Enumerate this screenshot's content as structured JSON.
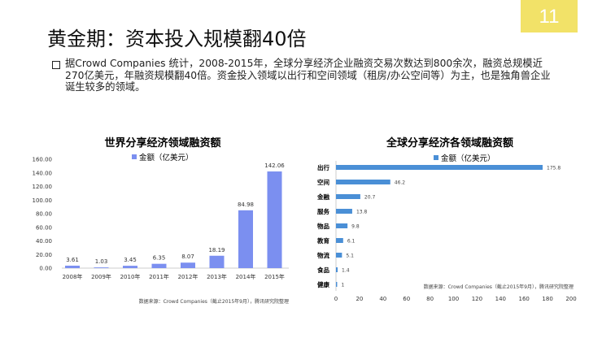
{
  "slide": {
    "title": "黄金期：资本投入规模翻40倍",
    "page_number": "11",
    "paragraph": "据Crowd Companies 统计，2008-2015年，全球分享经济企业融资交易次数达到800余次，融资总规模近270亿美元，年融资规模翻40倍。资金投入领域以出行和空间领域（租房/办公空间等）为主，也是独角兽企业诞生较多的领域。",
    "accent": "#f2e268"
  },
  "chart_data": [
    {
      "type": "bar",
      "title": "世界分享经济领域融资额",
      "legend": "金额（亿美元）",
      "legend_position": "top",
      "categories": [
        "2008年",
        "2009年",
        "2010年",
        "2011年",
        "2012年",
        "2013年",
        "2014年",
        "2015年"
      ],
      "values": [
        3.61,
        1.03,
        3.45,
        6.35,
        8.07,
        18.19,
        84.98,
        142.06
      ],
      "ylim": [
        0,
        160
      ],
      "yticks": [
        "0.00",
        "20.00",
        "40.00",
        "60.00",
        "80.00",
        "100.00",
        "120.00",
        "140.00",
        "160.00"
      ],
      "color": "#7b8ff0",
      "source": "数据来源：Crowd Companies（截止2015年9月），腾讯研究院整理"
    },
    {
      "type": "bar",
      "orientation": "horizontal",
      "title": "全球分享经济各领域融资额",
      "legend": "金额（亿美元）",
      "legend_position": "top",
      "categories": [
        "出行",
        "空间",
        "金融",
        "服务",
        "物品",
        "教育",
        "物流",
        "食品",
        "健康"
      ],
      "values": [
        175.8,
        46.2,
        20.7,
        13.8,
        9.8,
        6.1,
        5.1,
        1.4,
        1
      ],
      "xlim": [
        0,
        200
      ],
      "xticks": [
        "0",
        "20",
        "40",
        "60",
        "80",
        "100",
        "120",
        "140",
        "160",
        "180",
        "200"
      ],
      "color": "#4a8fd6",
      "source": "数据来源：Crowd Companies（截止2015年9月），腾讯研究院整理"
    }
  ]
}
